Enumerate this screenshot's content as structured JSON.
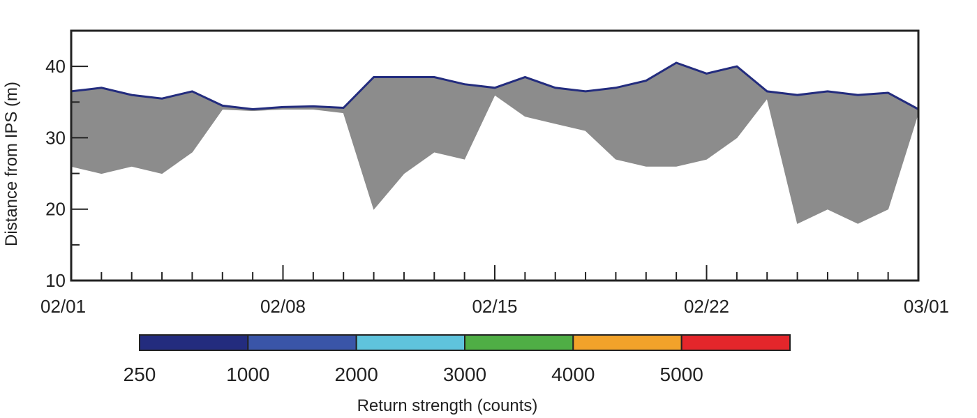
{
  "chart_data": {
    "type": "scatter",
    "title": "",
    "xlabel": "",
    "ylabel": "Distance from IPS (m)",
    "x_start": "02/01",
    "x_end": "03/01",
    "xlim": [
      "02/01",
      "03/01"
    ],
    "ylim": [
      10,
      45
    ],
    "x_tick_labels": [
      "02/01",
      "02/08",
      "02/15",
      "02/22",
      "03/01"
    ],
    "y_tick_values": [
      10,
      20,
      30,
      40
    ],
    "grid": false,
    "colorbar": {
      "title": "Return strength (counts)",
      "labels": [
        "250",
        "1000",
        "2000",
        "3000",
        "4000",
        "5000"
      ],
      "colors": [
        "#232c7e",
        "#3a55a8",
        "#5fc3dc",
        "#4fae45",
        "#f2a22a",
        "#e4262b"
      ]
    },
    "series_color": "#8c8c8c",
    "series": [
      {
        "x": [
          "02/01",
          "02/02",
          "02/03",
          "02/04",
          "02/05",
          "02/06",
          "02/07",
          "02/08",
          "02/09",
          "02/10",
          "02/11",
          "02/12",
          "02/13",
          "02/14",
          "02/15",
          "02/16",
          "02/17",
          "02/18",
          "02/19",
          "02/20",
          "02/21",
          "02/22",
          "02/23",
          "02/24",
          "02/25",
          "02/26",
          "02/27",
          "02/28",
          "03/01"
        ],
        "upper": [
          36.5,
          37.0,
          36.0,
          35.5,
          36.5,
          34.5,
          34.0,
          34.3,
          34.4,
          34.2,
          38.5,
          38.5,
          38.5,
          37.5,
          37.0,
          38.5,
          37.0,
          36.5,
          37.0,
          38.0,
          40.5,
          39.0,
          40.0,
          36.5,
          36.0,
          36.5,
          36.0,
          36.3,
          34.0
        ],
        "lower": [
          26.0,
          25.0,
          26.0,
          25.0,
          28.0,
          34.0,
          33.8,
          34.0,
          34.0,
          33.5,
          20.0,
          25.0,
          28.0,
          27.0,
          36.0,
          33.0,
          32.0,
          31.0,
          27.0,
          26.0,
          26.0,
          27.0,
          30.0,
          35.5,
          18.0,
          20.0,
          18.0,
          20.0,
          33.5
        ]
      }
    ]
  }
}
